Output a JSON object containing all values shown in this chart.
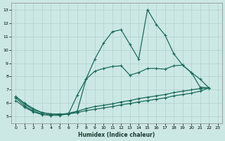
{
  "xlabel": "Humidex (Indice chaleur)",
  "background_color": "#cce8e5",
  "grid_color": "#b0d0cd",
  "line_color": "#1a6b5a",
  "xlim": [
    -0.5,
    23.5
  ],
  "ylim": [
    4.5,
    13.5
  ],
  "xticks": [
    0,
    1,
    2,
    3,
    4,
    5,
    6,
    7,
    8,
    9,
    10,
    11,
    12,
    13,
    14,
    15,
    16,
    17,
    18,
    19,
    20,
    21,
    22,
    23
  ],
  "yticks": [
    5,
    6,
    7,
    8,
    9,
    10,
    11,
    12,
    13
  ],
  "line1_x": [
    0,
    1,
    2,
    3,
    4,
    5,
    6,
    7,
    8,
    9,
    10,
    11,
    12,
    13,
    14,
    15,
    16,
    17,
    18,
    19,
    20,
    21,
    22
  ],
  "line1_y": [
    6.5,
    6.0,
    5.6,
    5.3,
    5.2,
    5.2,
    5.2,
    5.4,
    7.8,
    9.3,
    10.5,
    11.35,
    11.5,
    10.4,
    9.3,
    13.0,
    11.9,
    11.1,
    9.7,
    8.85,
    8.3,
    7.2,
    7.15
  ],
  "line2_x": [
    0,
    1,
    2,
    3,
    4,
    5,
    6,
    7,
    8,
    9,
    10,
    11,
    12,
    13,
    14,
    15,
    16,
    17,
    18,
    19,
    20,
    21,
    22
  ],
  "line2_y": [
    6.5,
    5.95,
    5.5,
    5.3,
    5.2,
    5.2,
    5.2,
    6.6,
    7.8,
    8.4,
    8.6,
    8.75,
    8.8,
    8.1,
    8.3,
    8.6,
    8.6,
    8.55,
    8.8,
    8.85,
    8.3,
    7.8,
    7.15
  ],
  "line3_x": [
    0,
    1,
    2,
    3,
    4,
    5,
    6,
    7,
    8,
    9,
    10,
    11,
    12,
    13,
    14,
    15,
    16,
    17,
    18,
    19,
    20,
    21,
    22
  ],
  "line3_y": [
    6.4,
    5.8,
    5.4,
    5.2,
    5.1,
    5.15,
    5.25,
    5.4,
    5.6,
    5.75,
    5.85,
    5.95,
    6.1,
    6.2,
    6.35,
    6.45,
    6.55,
    6.65,
    6.8,
    6.9,
    7.0,
    7.1,
    7.15
  ],
  "line4_x": [
    0,
    1,
    2,
    3,
    4,
    5,
    6,
    7,
    8,
    9,
    10,
    11,
    12,
    13,
    14,
    15,
    16,
    17,
    18,
    19,
    20,
    21,
    22
  ],
  "line4_y": [
    6.2,
    5.7,
    5.35,
    5.15,
    5.1,
    5.1,
    5.2,
    5.3,
    5.45,
    5.55,
    5.65,
    5.75,
    5.88,
    5.98,
    6.1,
    6.2,
    6.3,
    6.4,
    6.55,
    6.65,
    6.75,
    6.9,
    7.15
  ]
}
